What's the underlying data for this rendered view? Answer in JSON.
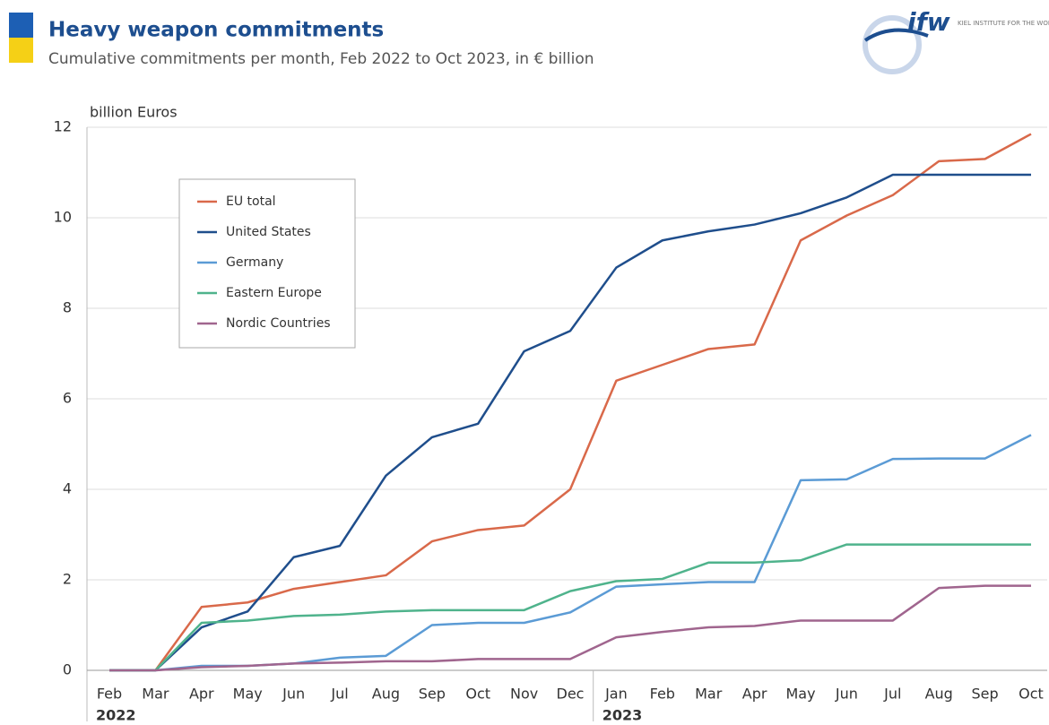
{
  "header": {
    "title": "Heavy weapon commitments",
    "subtitle": "Cumulative commitments per month, Feb 2022 to Oct 2023, in € billion",
    "logo": "ifw",
    "logo_text": "KIEL INSTITUTE FOR THE WORLD ECONOMY"
  },
  "chart_data": {
    "type": "line",
    "y_label": "billion Euros",
    "categories": [
      "Feb",
      "Mar",
      "Apr",
      "May",
      "Jun",
      "Jul",
      "Aug",
      "Sep",
      "Oct",
      "Nov",
      "Dec",
      "Jan",
      "Feb",
      "Mar",
      "Apr",
      "May",
      "Jun",
      "Jul",
      "Aug",
      "Sep",
      "Oct"
    ],
    "x_groups": [
      {
        "label": "2022",
        "start": 0
      },
      {
        "label": "2023",
        "start": 11
      }
    ],
    "series": [
      {
        "name": "EU total",
        "color": "#d9694a",
        "values": [
          0,
          0,
          1.4,
          1.5,
          1.8,
          1.95,
          2.1,
          2.85,
          3.1,
          3.2,
          4.0,
          6.4,
          6.75,
          7.1,
          7.2,
          9.5,
          10.05,
          10.5,
          11.25,
          11.3,
          11.85
        ]
      },
      {
        "name": "United States",
        "color": "#1f4e8c",
        "values": [
          0,
          0,
          0.95,
          1.3,
          2.5,
          2.75,
          4.3,
          5.15,
          5.45,
          7.05,
          7.5,
          8.9,
          9.5,
          9.7,
          9.85,
          10.1,
          10.45,
          10.95,
          10.95,
          10.95,
          10.95
        ]
      },
      {
        "name": "Germany",
        "color": "#5b9bd5",
        "values": [
          0,
          0,
          0.1,
          0.1,
          0.15,
          0.28,
          0.32,
          1.0,
          1.05,
          1.05,
          1.28,
          1.85,
          1.9,
          1.95,
          1.95,
          4.2,
          4.22,
          4.67,
          4.68,
          4.68,
          5.2
        ]
      },
      {
        "name": "Eastern Europe",
        "color": "#4fb38c",
        "values": [
          0,
          0,
          1.05,
          1.1,
          1.2,
          1.23,
          1.3,
          1.33,
          1.33,
          1.33,
          1.75,
          1.97,
          2.02,
          2.38,
          2.38,
          2.43,
          2.78,
          2.78,
          2.78,
          2.78,
          2.78
        ]
      },
      {
        "name": "Nordic Countries",
        "color": "#a0658e",
        "values": [
          0,
          0,
          0.07,
          0.1,
          0.15,
          0.17,
          0.2,
          0.2,
          0.25,
          0.25,
          0.25,
          0.73,
          0.85,
          0.95,
          0.98,
          1.1,
          1.1,
          1.1,
          1.82,
          1.87,
          1.87
        ]
      }
    ],
    "ylim": [
      0,
      12
    ],
    "yticks": [
      0,
      2,
      4,
      6,
      8,
      10,
      12
    ],
    "grid": true,
    "legend": "upper left"
  }
}
